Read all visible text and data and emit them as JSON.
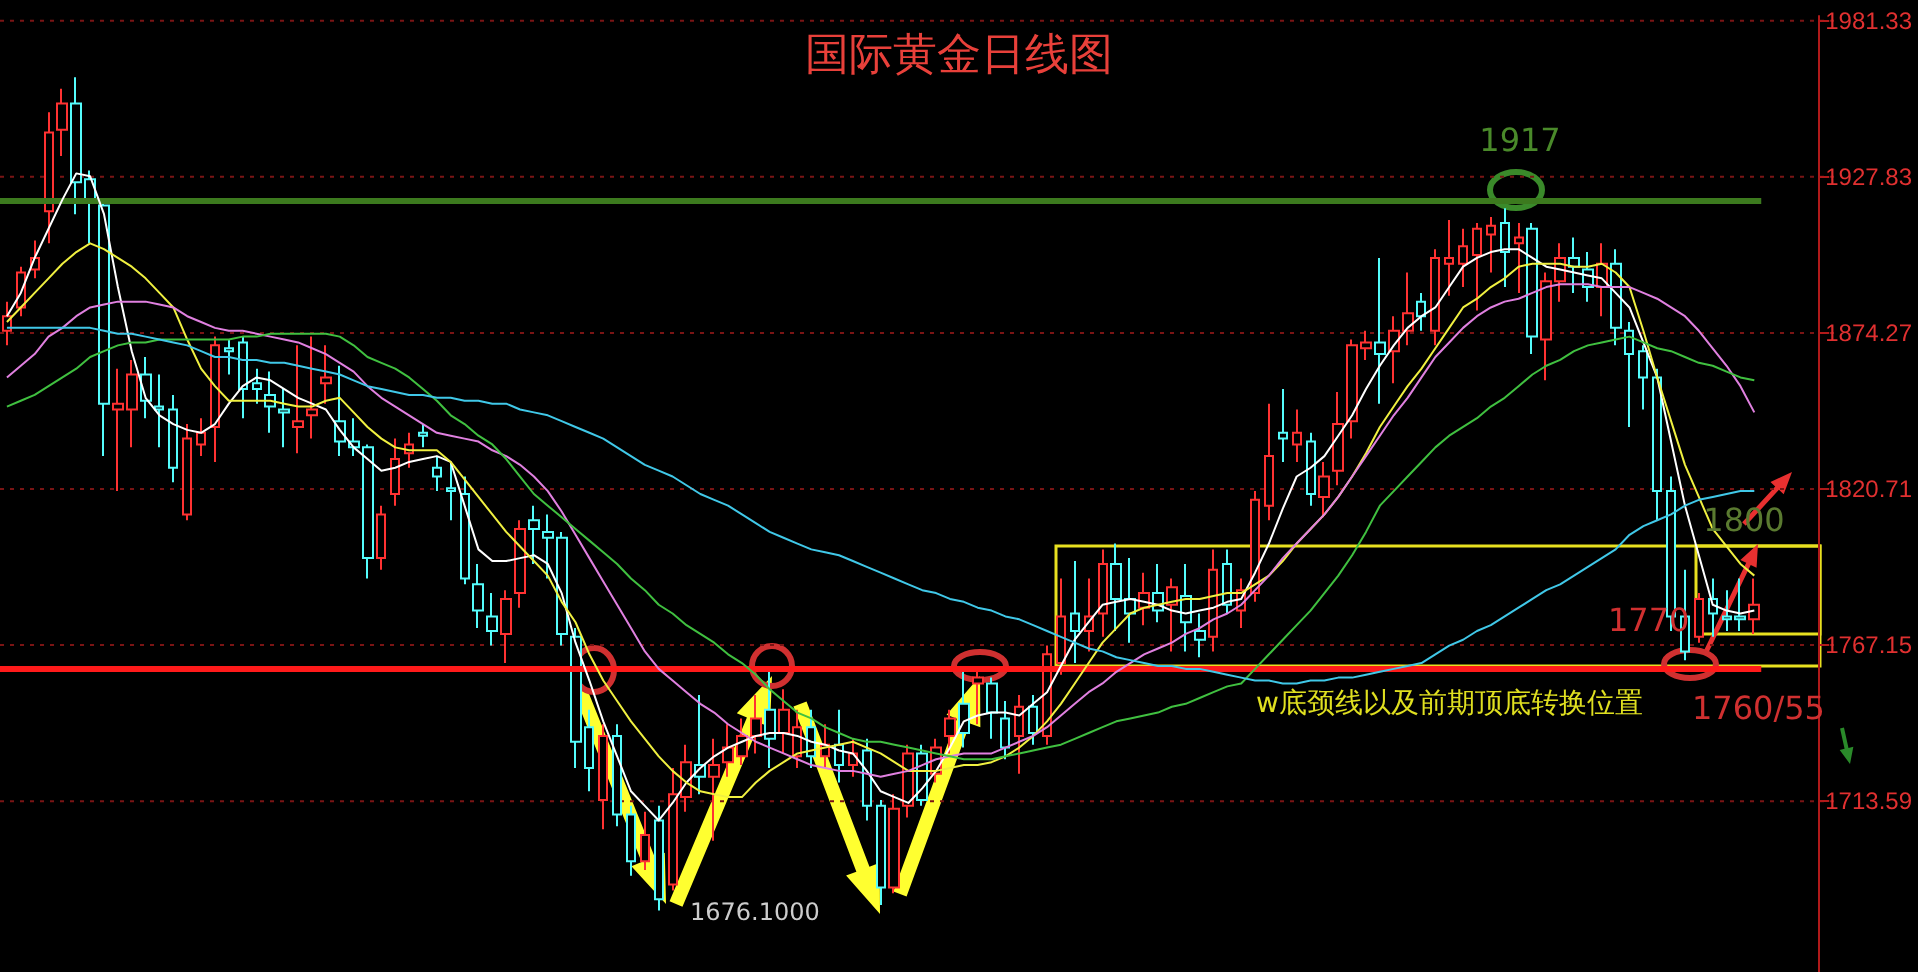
{
  "chart_data": {
    "type": "candlestick",
    "title": "国际黄金日线图",
    "categories": [
      null,
      null,
      null,
      null,
      null,
      null,
      null,
      null,
      null,
      null,
      null,
      null,
      null,
      null,
      null,
      null,
      null,
      null,
      null,
      null,
      null,
      null,
      null,
      null,
      null,
      null,
      null,
      null,
      null,
      null,
      null,
      null,
      null,
      null,
      null,
      null,
      null,
      null,
      null,
      null,
      null,
      null,
      null,
      null,
      null,
      null,
      null,
      null,
      null,
      null,
      null,
      null,
      null,
      null,
      null,
      null,
      null,
      null,
      null,
      null,
      null,
      null,
      null,
      null,
      null,
      null,
      null,
      null,
      null,
      null,
      null,
      null,
      null,
      null,
      null,
      null,
      null,
      null,
      null,
      null,
      null,
      null,
      null,
      null,
      null,
      null,
      null,
      null,
      null,
      null,
      null,
      null,
      null,
      null,
      null,
      null,
      null,
      null,
      null,
      null,
      null,
      null,
      null,
      null,
      null,
      null,
      null,
      null,
      null,
      null,
      null,
      null,
      null,
      null,
      null,
      null,
      null,
      null,
      null,
      null,
      null,
      null,
      null,
      null,
      null,
      null,
      null
    ],
    "colors": [
      "#ff3232",
      "#ff3232",
      "#ff3232",
      "#ff3232",
      "#ff3232",
      "#54fcfc",
      "#54fcfc",
      "#54fcfc",
      "#ff3232",
      "#ff3232",
      "#54fcfc",
      "#54fcfc",
      "#54fcfc",
      "#ff3232",
      "#ff3232",
      "#ff3232",
      "#54fcfc",
      "#54fcfc",
      "#54fcfc",
      "#54fcfc",
      "#54fcfc",
      "#ff3232",
      "#ff3232",
      "#ff3232",
      "#54fcfc",
      "#54fcfc",
      "#54fcfc",
      "#ff3232",
      "#ff3232",
      "#ff3232",
      "#54fcfc",
      "#54fcfc",
      "#54fcfc",
      "#54fcfc",
      "#54fcfc",
      "#54fcfc",
      "#ff3232",
      "#ff3232",
      "#54fcfc",
      "#54fcfc",
      "#54fcfc",
      "#54fcfc",
      "#54fcfc",
      "#ff3232",
      "#54fcfc",
      "#54fcfc",
      "#ff3232",
      "#54fcfc",
      "#ff3232",
      "#ff3232",
      "#54fcfc",
      "#ff3232",
      "#ff3232",
      "#ff3232",
      "#ff3232",
      "#54fcfc",
      "#ff3232",
      "#ff3232",
      "#54fcfc",
      "#ff3232",
      "#54fcfc",
      "#ff3232",
      "#54fcfc",
      "#54fcfc",
      "#ff3232",
      "#ff3232",
      "#54fcfc",
      "#ff3232",
      "#ff3232",
      "#54fcfc",
      "#ff3232",
      "#54fcfc",
      "#54fcfc",
      "#ff3232",
      "#54fcfc",
      "#ff3232",
      "#ff3232",
      "#54fcfc",
      "#ff3232",
      "#ff3232",
      "#54fcfc",
      "#54fcfc",
      "#ff3232",
      "#54fcfc",
      "#ff3232",
      "#54fcfc",
      "#54fcfc",
      "#ff3232",
      "#54fcfc",
      "#ff3232",
      "#ff3232",
      "#ff3232",
      "#54fcfc",
      "#ff3232",
      "#54fcfc",
      "#ff3232",
      "#ff3232",
      "#ff3232",
      "#ff3232",
      "#54fcfc",
      "#ff3232",
      "#ff3232",
      "#54fcfc",
      "#ff3232",
      "#ff3232",
      "#ff3232",
      "#ff3232",
      "#ff3232",
      "#54fcfc",
      "#ff3232",
      "#54fcfc",
      "#ff3232",
      "#ff3232",
      "#54fcfc",
      "#54fcfc",
      "#ff3232",
      "#54fcfc",
      "#54fcfc",
      "#54fcfc",
      "#54fcfc",
      "#54fcfc",
      "#54fcfc",
      "#ff3232",
      "#54fcfc",
      "#54fcfc",
      "#54fcfc",
      "#ff3232"
    ],
    "ohlc": [
      [
        1875,
        1885,
        1870,
        1880
      ],
      [
        1883,
        1897,
        1880,
        1895
      ],
      [
        1896,
        1906,
        1893,
        1900
      ],
      [
        1916,
        1950,
        1905,
        1943
      ],
      [
        1944,
        1958,
        1935,
        1953
      ],
      [
        1953,
        1962,
        1915,
        1926
      ],
      [
        1927,
        1930,
        1905,
        1919
      ],
      [
        1918,
        1919,
        1832,
        1850
      ],
      [
        1848,
        1862,
        1820,
        1850
      ],
      [
        1848,
        1865,
        1835,
        1860
      ],
      [
        1860,
        1866,
        1845,
        1851
      ],
      [
        1849,
        1860,
        1835,
        1848
      ],
      [
        1848,
        1853,
        1823,
        1828
      ],
      [
        1812,
        1843,
        1810,
        1838
      ],
      [
        1836,
        1845,
        1832,
        1840
      ],
      [
        1842,
        1873,
        1830,
        1870
      ],
      [
        1869,
        1872,
        1860,
        1868
      ],
      [
        1871,
        1873,
        1845,
        1855
      ],
      [
        1857,
        1862,
        1850,
        1855
      ],
      [
        1853,
        1861,
        1840,
        1849
      ],
      [
        1848,
        1855,
        1835,
        1847
      ],
      [
        1842,
        1870,
        1833,
        1844
      ],
      [
        1846,
        1873,
        1838,
        1848
      ],
      [
        1857,
        1870,
        1850,
        1859
      ],
      [
        1844,
        1863,
        1832,
        1837
      ],
      [
        1837,
        1845,
        1832,
        1835
      ],
      [
        1835,
        1836,
        1790,
        1797
      ],
      [
        1797,
        1815,
        1793,
        1812
      ],
      [
        1819,
        1838,
        1815,
        1831
      ],
      [
        1833,
        1840,
        1828,
        1836
      ],
      [
        1840,
        1843,
        1835,
        1839
      ],
      [
        1828,
        1832,
        1820,
        1825
      ],
      [
        1821,
        1830,
        1810,
        1820
      ],
      [
        1819,
        1825,
        1788,
        1790
      ],
      [
        1788,
        1795,
        1773,
        1779
      ],
      [
        1777,
        1785,
        1767,
        1772
      ],
      [
        1771,
        1786,
        1761,
        1783
      ],
      [
        1785,
        1810,
        1780,
        1807
      ],
      [
        1810,
        1815,
        1795,
        1807
      ],
      [
        1806,
        1812,
        1790,
        1804
      ],
      [
        1804,
        1806,
        1767,
        1771
      ],
      [
        1770,
        1773,
        1725,
        1734
      ],
      [
        1739,
        1745,
        1717,
        1725
      ],
      [
        1714,
        1740,
        1704,
        1736
      ],
      [
        1736,
        1740,
        1705,
        1709
      ],
      [
        1709,
        1712,
        1688,
        1693
      ],
      [
        1693,
        1710,
        1690,
        1702
      ],
      [
        1707,
        1712,
        1676.1,
        1680
      ],
      [
        1685,
        1725,
        1683,
        1716
      ],
      [
        1715,
        1733,
        1710,
        1727
      ],
      [
        1726,
        1750,
        1716,
        1722
      ],
      [
        1722,
        1735,
        1700,
        1726
      ],
      [
        1727,
        1740,
        1722,
        1732
      ],
      [
        1729,
        1742,
        1726,
        1736
      ],
      [
        1736,
        1750,
        1730,
        1742
      ],
      [
        1745,
        1760,
        1725,
        1735
      ],
      [
        1737,
        1752,
        1730,
        1745
      ],
      [
        1729,
        1745,
        1725,
        1739
      ],
      [
        1739,
        1745,
        1725,
        1729
      ],
      [
        1729,
        1740,
        1725,
        1733
      ],
      [
        1733,
        1745,
        1720,
        1726
      ],
      [
        1726,
        1735,
        1722,
        1730
      ],
      [
        1731,
        1735,
        1707,
        1712
      ],
      [
        1712,
        1714,
        1678,
        1684
      ],
      [
        1684,
        1716,
        1682,
        1711
      ],
      [
        1712,
        1733,
        1708,
        1730
      ],
      [
        1730,
        1733,
        1712,
        1714
      ],
      [
        1723,
        1735,
        1720,
        1732
      ],
      [
        1736,
        1745,
        1730,
        1742
      ],
      [
        1747,
        1758,
        1732,
        1737
      ],
      [
        1754,
        1760,
        1740,
        1756
      ],
      [
        1754,
        1756,
        1735,
        1744
      ],
      [
        1742,
        1748,
        1728,
        1732
      ],
      [
        1736,
        1750,
        1723,
        1746
      ],
      [
        1746,
        1750,
        1733,
        1737
      ],
      [
        1736,
        1767,
        1733,
        1764
      ],
      [
        1761,
        1790,
        1757,
        1777
      ],
      [
        1778,
        1796,
        1761,
        1772
      ],
      [
        1772,
        1790,
        1765,
        1777
      ],
      [
        1778,
        1800,
        1770,
        1795
      ],
      [
        1795,
        1802,
        1772,
        1783
      ],
      [
        1783,
        1797,
        1768,
        1778
      ],
      [
        1780,
        1792,
        1774,
        1785
      ],
      [
        1785,
        1795,
        1775,
        1779
      ],
      [
        1781,
        1790,
        1765,
        1787
      ],
      [
        1784,
        1795,
        1765,
        1775
      ],
      [
        1772,
        1778,
        1763,
        1769
      ],
      [
        1770,
        1800,
        1765,
        1793
      ],
      [
        1795,
        1800,
        1778,
        1781
      ],
      [
        1779,
        1790,
        1773,
        1786
      ],
      [
        1785,
        1820,
        1782,
        1817
      ],
      [
        1815,
        1850,
        1810,
        1832
      ],
      [
        1840,
        1855,
        1830,
        1838
      ],
      [
        1836,
        1848,
        1830,
        1840
      ],
      [
        1837,
        1840,
        1815,
        1819
      ],
      [
        1818,
        1830,
        1811,
        1825
      ],
      [
        1827,
        1854,
        1822,
        1843
      ],
      [
        1844,
        1872,
        1838,
        1870
      ],
      [
        1869,
        1875,
        1865,
        1871
      ],
      [
        1871,
        1900,
        1850,
        1867
      ],
      [
        1868,
        1880,
        1857,
        1875
      ],
      [
        1875,
        1895,
        1870,
        1881
      ],
      [
        1885,
        1888,
        1875,
        1880
      ],
      [
        1875,
        1903,
        1870,
        1900
      ],
      [
        1898,
        1913,
        1887,
        1900
      ],
      [
        1898,
        1910,
        1890,
        1904
      ],
      [
        1901,
        1912,
        1882,
        1910
      ],
      [
        1908,
        1914,
        1895,
        1911
      ],
      [
        1912,
        1917,
        1890,
        1902
      ],
      [
        1905,
        1912,
        1888,
        1907
      ],
      [
        1910,
        1912,
        1867,
        1873
      ],
      [
        1872,
        1895,
        1858,
        1892
      ],
      [
        1892,
        1905,
        1885,
        1900
      ],
      [
        1900,
        1907,
        1888,
        1897
      ],
      [
        1896,
        1902,
        1885,
        1890
      ],
      [
        1890,
        1905,
        1880,
        1898
      ],
      [
        1898,
        1903,
        1870,
        1876
      ],
      [
        1875,
        1878,
        1842,
        1867
      ],
      [
        1868,
        1870,
        1848,
        1859
      ],
      [
        1859,
        1862,
        1810,
        1820
      ],
      [
        1820,
        1825,
        1772,
        1777
      ],
      [
        1777,
        1793,
        1762,
        1765
      ],
      [
        1770,
        1785,
        1768,
        1783
      ],
      [
        1783,
        1790,
        1770,
        1778
      ],
      [
        1777,
        1786,
        1772,
        1776
      ],
      [
        1777,
        1790,
        1772,
        1776
      ],
      [
        1776,
        1790,
        1771,
        1781
      ]
    ],
    "series": [
      {
        "type": "line",
        "color": "#ffffff",
        "values": [
          1880,
          1888,
          1900,
          1910,
          1920,
          1929,
          1928,
          1915,
          1890,
          1868,
          1852,
          1846,
          1843,
          1841,
          1840,
          1843,
          1850,
          1856,
          1859,
          1858,
          1855,
          1852,
          1850,
          1848,
          1841,
          1835,
          1831,
          1827,
          1828,
          1830,
          1831,
          1832,
          1830,
          1815,
          1800,
          1796,
          1796,
          1797,
          1798,
          1795,
          1785,
          1768,
          1755,
          1741,
          1729,
          1717,
          1712,
          1707,
          1713,
          1720,
          1725,
          1729,
          1732,
          1734,
          1736,
          1737,
          1737,
          1736,
          1734,
          1733,
          1731,
          1730,
          1724,
          1717,
          1715,
          1713,
          1718,
          1724,
          1732,
          1741,
          1743,
          1744,
          1744,
          1743,
          1747,
          1751,
          1760,
          1769,
          1775,
          1781,
          1782,
          1783,
          1782,
          1781,
          1779,
          1778,
          1779,
          1780,
          1782,
          1783,
          1792,
          1802,
          1814,
          1825,
          1828,
          1832,
          1839,
          1846,
          1855,
          1863,
          1870,
          1876,
          1880,
          1883,
          1890,
          1897,
          1900,
          1902,
          1903,
          1903,
          1900,
          1897,
          1896,
          1895,
          1894,
          1893,
          1888,
          1883,
          1871,
          1859,
          1837,
          1815,
          1798,
          1781,
          1779,
          1778,
          1779
        ]
      },
      {
        "type": "line",
        "color": "#f0f040",
        "values": [
          1878,
          1883,
          1888,
          1893,
          1898,
          1902,
          1905,
          1903,
          1900,
          1897,
          1893,
          1888,
          1883,
          1872,
          1862,
          1856,
          1851,
          1851,
          1851,
          1851,
          1850,
          1849,
          1849,
          1851,
          1852,
          1847,
          1842,
          1838,
          1835,
          1834,
          1834,
          1834,
          1830,
          1824,
          1818,
          1812,
          1806,
          1801,
          1796,
          1791,
          1782,
          1775,
          1764,
          1755,
          1748,
          1741,
          1735,
          1729,
          1724,
          1720,
          1717,
          1716,
          1715,
          1715,
          1720,
          1724,
          1727,
          1730,
          1731,
          1732,
          1733,
          1734,
          1732,
          1730,
          1727,
          1724,
          1724,
          1724,
          1725,
          1726,
          1726,
          1727,
          1729,
          1732,
          1736,
          1741,
          1747,
          1754,
          1761,
          1768,
          1773,
          1778,
          1780,
          1781,
          1782,
          1783,
          1783,
          1784,
          1785,
          1785,
          1788,
          1791,
          1796,
          1802,
          1807,
          1812,
          1818,
          1825,
          1833,
          1842,
          1849,
          1856,
          1862,
          1869,
          1876,
          1883,
          1886,
          1890,
          1893,
          1897,
          1898,
          1898,
          1898,
          1897,
          1897,
          1898,
          1895,
          1890,
          1875,
          1859,
          1844,
          1829,
          1818,
          1807,
          1801,
          1795,
          1791
        ]
      },
      {
        "type": "line",
        "color": "#e080e0",
        "values": [
          1859,
          1863,
          1867,
          1873,
          1876,
          1880,
          1883,
          1884,
          1885,
          1885,
          1885,
          1884,
          1883,
          1880,
          1878,
          1876,
          1875,
          1875,
          1874,
          1873,
          1872,
          1871,
          1869,
          1867,
          1864,
          1861,
          1856,
          1852,
          1849,
          1846,
          1843,
          1840,
          1839,
          1838,
          1837,
          1834,
          1832,
          1829,
          1825,
          1820,
          1813,
          1805,
          1797,
          1789,
          1781,
          1773,
          1765,
          1759,
          1755,
          1751,
          1747,
          1744,
          1740,
          1737,
          1734,
          1732,
          1730,
          1728,
          1726,
          1725,
          1724,
          1724,
          1723,
          1722,
          1723,
          1724,
          1726,
          1728,
          1729,
          1730,
          1730,
          1730,
          1732,
          1734,
          1736,
          1739,
          1743,
          1747,
          1751,
          1754,
          1758,
          1761,
          1764,
          1766,
          1768,
          1771,
          1773,
          1776,
          1778,
          1781,
          1786,
          1791,
          1797,
          1802,
          1807,
          1812,
          1818,
          1825,
          1832,
          1839,
          1846,
          1852,
          1859,
          1866,
          1871,
          1876,
          1880,
          1883,
          1885,
          1886,
          1888,
          1890,
          1891,
          1891,
          1891,
          1890,
          1890,
          1890,
          1888,
          1886,
          1883,
          1880,
          1875,
          1869,
          1863,
          1856,
          1847
        ]
      },
      {
        "type": "line",
        "color": "#40c040",
        "values": [
          1849,
          1851,
          1853,
          1856,
          1859,
          1862,
          1866,
          1868,
          1870,
          1871,
          1871,
          1872,
          1872,
          1872,
          1872,
          1872,
          1872,
          1873,
          1873,
          1874,
          1874,
          1874,
          1874,
          1874,
          1873,
          1870,
          1866,
          1864,
          1862,
          1859,
          1855,
          1851,
          1846,
          1843,
          1839,
          1836,
          1831,
          1825,
          1819,
          1815,
          1811,
          1807,
          1803,
          1799,
          1795,
          1790,
          1786,
          1781,
          1778,
          1774,
          1771,
          1768,
          1764,
          1761,
          1757,
          1752,
          1748,
          1744,
          1742,
          1739,
          1737,
          1735,
          1734,
          1734,
          1733,
          1732,
          1731,
          1730,
          1729,
          1728,
          1728,
          1728,
          1729,
          1730,
          1731,
          1732,
          1733,
          1735,
          1737,
          1739,
          1741,
          1742,
          1743,
          1744,
          1746,
          1747,
          1749,
          1751,
          1753,
          1754,
          1759,
          1764,
          1769,
          1774,
          1779,
          1785,
          1791,
          1798,
          1806,
          1815,
          1820,
          1825,
          1830,
          1835,
          1839,
          1842,
          1845,
          1849,
          1852,
          1856,
          1860,
          1863,
          1865,
          1868,
          1870,
          1871,
          1872,
          1873,
          1871,
          1869,
          1868,
          1866,
          1864,
          1863,
          1861,
          1859,
          1858
        ]
      },
      {
        "type": "line",
        "color": "#40c8e8",
        "values": [
          1876,
          1876,
          1876,
          1876,
          1876,
          1876,
          1876,
          1875,
          1874,
          1874,
          1873,
          1872,
          1871,
          1870,
          1868,
          1866,
          1866,
          1865,
          1865,
          1864,
          1864,
          1863,
          1862,
          1861,
          1860,
          1858,
          1856,
          1855,
          1854,
          1853,
          1853,
          1852,
          1852,
          1851,
          1851,
          1850,
          1850,
          1848,
          1847,
          1846,
          1844,
          1842,
          1840,
          1838,
          1835,
          1832,
          1829,
          1827,
          1825,
          1822,
          1819,
          1817,
          1815,
          1812,
          1809,
          1806,
          1804,
          1802,
          1800,
          1799,
          1798,
          1796,
          1794,
          1792,
          1790,
          1788,
          1786,
          1785,
          1783,
          1782,
          1780,
          1779,
          1777,
          1776,
          1774,
          1772,
          1770,
          1768,
          1766,
          1765,
          1763,
          1762,
          1761,
          1760,
          1760,
          1759,
          1759,
          1758,
          1757,
          1756,
          1755,
          1755,
          1754,
          1754,
          1755,
          1755,
          1756,
          1756,
          1757,
          1758,
          1759,
          1760,
          1761,
          1764,
          1767,
          1769,
          1772,
          1774,
          1777,
          1780,
          1783,
          1786,
          1788,
          1791,
          1794,
          1797,
          1800,
          1805,
          1808,
          1810,
          1812,
          1815,
          1817,
          1818,
          1819,
          1820,
          1820
        ]
      }
    ],
    "ylim": [
      1655,
      1983
    ],
    "yticks": [
      1713.59,
      1767.15,
      1820.71,
      1874.27,
      1927.83,
      1981.33
    ],
    "tick_labels": "y",
    "grid": "y",
    "ref_lines": [
      {
        "axis": "y",
        "value": 1920,
        "color": "#3c7a1e"
      },
      {
        "axis": "y",
        "value": 1759,
        "color": "#ff1a1a"
      }
    ],
    "annotations": [
      "1917",
      "1800",
      "1770",
      "1760/55",
      "w底颈线以及前期顶底转换位置",
      "1676.1000"
    ]
  }
}
